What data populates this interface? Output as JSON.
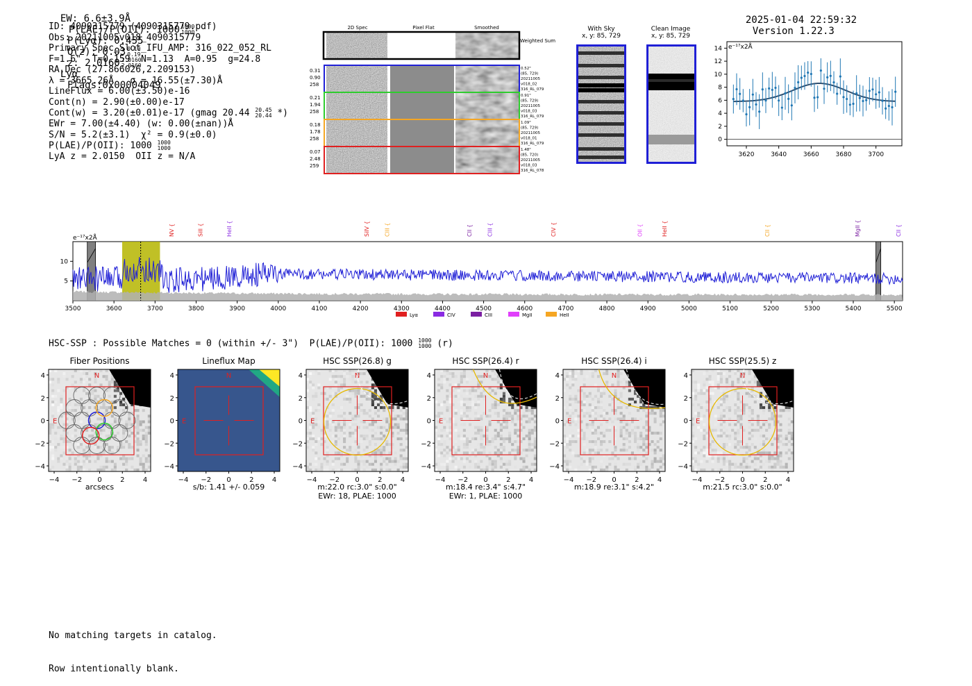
{
  "header": {
    "ew": "EW: 6.6±3.9Å",
    "plae": "P(LAE)/P(OII): 1000",
    "plae_sup": "1000",
    "plae_sub": "1000",
    "plya": "P(Lyα): 0.455",
    "qz": "Q(z): 0.03",
    "qz_sup": "0.19",
    "qz_sub": "0.19",
    "z": "z: 2.0160",
    "z_sup": "2.0160",
    "z_sub": "2.0160",
    "z_line": "Lyα",
    "flags": "Flags:0x00004049",
    "datetime": "2025-01-04 22:59:32",
    "version": "Version 1.22.3"
  },
  "info": {
    "lines": [
      "ID: 4090315779 (4090315779.pdf)",
      "Obs: 20211005v018_4090315779",
      "Primary Spec_Slot_IFU_AMP: 316_022_052_RL",
      "F=1.6\"  T=0.159  N=1.13  A=0.95  g=24.8",
      "RA,Dec (27.866026,2.209153)",
      "λ = 3665.26Å   σ = 16.55(±7.30)Å",
      "LineFlux = 6.00(±3.50)e-16",
      "Cont(n) = 2.90(±0.00)e-17",
      "Cont(w) = 3.20(±0.01)e-17 (gmag 20.44",
      "EWr = 7.00(±4.40) (w: 0.00(±nan))Å",
      "S/N = 5.2(±3.1)  χ² = 0.9(±0.0)",
      "P(LAE)/P(OII): 1000",
      "LyA z = 2.0150  OII z = N/A"
    ],
    "gmag_sup": "20.45",
    "gmag_sub": "20.44",
    "gmag_tail": "*)",
    "plae_sup": "1000",
    "plae_sub": "1000"
  },
  "cutouts": {
    "col_headers": [
      "2D Spec",
      "Pixel Flat",
      "Smoothed"
    ],
    "weighted_sum": "Weighted Sum",
    "rows": [
      {
        "left": [
          "0.31",
          "0.90",
          "258"
        ],
        "right": [
          "0.52\"",
          "(85, 729)",
          "20211005",
          "v018_02",
          "316_RL_079"
        ],
        "color": "#1f1fd6"
      },
      {
        "left": [
          "0.21",
          "1.94",
          "258"
        ],
        "right": [
          "0.91\"",
          "(85, 729)",
          "20211005",
          "v018_03",
          "316_RL_079"
        ],
        "color": "#2ecc2e"
      },
      {
        "left": [
          "0.18",
          "1.78",
          "258"
        ],
        "right": [
          "1.09\"",
          "(85, 729)",
          "20211005",
          "v018_01",
          "316_RL_079"
        ],
        "color": "#f5a623"
      },
      {
        "left": [
          "0.07",
          "2.48",
          "259"
        ],
        "right": [
          "1.48\"",
          "(85, 720)",
          "20211005",
          "v018_03",
          "316_RL_078"
        ],
        "color": "#e02020"
      }
    ]
  },
  "sky": {
    "with_sky_title": "With Sky",
    "with_sky_xy": "x, y: 85, 729",
    "clean_title": "Clean Image",
    "clean_xy": "x, y: 85, 729"
  },
  "zoom_chart": {
    "unit": "e⁻¹⁷x2Å",
    "xticks": [
      "3620",
      "3640",
      "3660",
      "3680",
      "3700"
    ],
    "yticks": [
      "0",
      "2",
      "4",
      "6",
      "8",
      "10",
      "12",
      "14"
    ]
  },
  "chart_data": {
    "type": "line",
    "title": "",
    "ylabel": "e⁻¹⁷x2Å",
    "xlabel": "",
    "xlim": [
      3500,
      5520
    ],
    "ylim": [
      0,
      15
    ],
    "xticks": [
      "3500",
      "3600",
      "3700",
      "3800",
      "3900",
      "4000",
      "4100",
      "4200",
      "4300",
      "4400",
      "4500",
      "4600",
      "4700",
      "4800",
      "4900",
      "5000",
      "5100",
      "5200",
      "5300",
      "5400",
      "5500"
    ],
    "yticks": [
      "5",
      "10"
    ],
    "lines": [
      {
        "name": "NV",
        "x": 3740,
        "color": "#e02020"
      },
      {
        "name": "SiII",
        "x": 3810,
        "color": "#e02020"
      },
      {
        "name": "HeII",
        "x": 3880,
        "color": "#8a2be2"
      },
      {
        "name": "SiIV",
        "x": 4215,
        "color": "#e02020"
      },
      {
        "name": "CIII",
        "x": 4265,
        "color": "#f5a623"
      },
      {
        "name": "CII",
        "x": 4465,
        "color": "#7b1fa2"
      },
      {
        "name": "CIII",
        "x": 4515,
        "color": "#8a2be2"
      },
      {
        "name": "CIV",
        "x": 4670,
        "color": "#e02020"
      },
      {
        "name": "OII",
        "x": 4880,
        "color": "#e040fb"
      },
      {
        "name": "HeII",
        "x": 4940,
        "color": "#e02020"
      },
      {
        "name": "CII",
        "x": 5190,
        "color": "#f5a623"
      },
      {
        "name": "MgII",
        "x": 5410,
        "color": "#7b1fa2"
      },
      {
        "name": "CII",
        "x": 5510,
        "color": "#8a2be2"
      }
    ],
    "legend": [
      {
        "name": "Lyα",
        "color": "#e02020"
      },
      {
        "name": "CIV",
        "color": "#8a2be2"
      },
      {
        "name": "CIII",
        "color": "#7b1fa2"
      },
      {
        "name": "MgII",
        "color": "#e040fb"
      },
      {
        "name": "HeII",
        "color": "#f5a623"
      }
    ],
    "highlight_range": [
      3620,
      3712
    ],
    "line_marker": 3665,
    "masked_ranges": [
      [
        3535,
        3555
      ],
      [
        5455,
        5467
      ]
    ],
    "series": [
      {
        "name": "flux",
        "color": "#1f1fd6",
        "mean_level": 6.5
      },
      {
        "name": "error",
        "color": "#b0b0b0",
        "mean_level": 1.5
      }
    ]
  },
  "hsc": {
    "header": "HSC-SSP : Possible Matches = 0 (within +/- 3\")  P(LAE)/P(OII): 1000",
    "header_sup": "1000",
    "header_sub": "1000",
    "header_tail": "(r)",
    "panels": [
      {
        "title": "Fiber Positions",
        "cap1": "arcsecs",
        "cap2": ""
      },
      {
        "title": "Lineflux Map",
        "cap1": "s/b: 1.41 +/- 0.059",
        "cap2": ""
      },
      {
        "title": "HSC SSP(26.8) g",
        "cap1": "m:22.0 rc:3.0\"  s:0.0\"",
        "cap2": "EWr: 18, PLAE: 1000"
      },
      {
        "title": "HSC SSP(26.4) r",
        "cap1": "m:18.4  re:3.4\"  s:4.7\"",
        "cap2": "EWr: 1, PLAE: 1000"
      },
      {
        "title": "HSC SSP(26.4) i",
        "cap1": "m:18.9  re:3.1\"  s:4.2\"",
        "cap2": ""
      },
      {
        "title": "HSC SSP(25.5) z",
        "cap1": "m:21.5 rc:3.0\"  s:0.0\"",
        "cap2": ""
      }
    ],
    "yticks": [
      "4",
      "2",
      "0",
      "−2",
      "−4"
    ],
    "xticks": [
      "−4",
      "−2",
      "0",
      "2",
      "4"
    ],
    "n_label": "N",
    "e_label": "E"
  },
  "footer": {
    "line1": "No matching targets in catalog.",
    "line2": "Row intentionally blank."
  }
}
